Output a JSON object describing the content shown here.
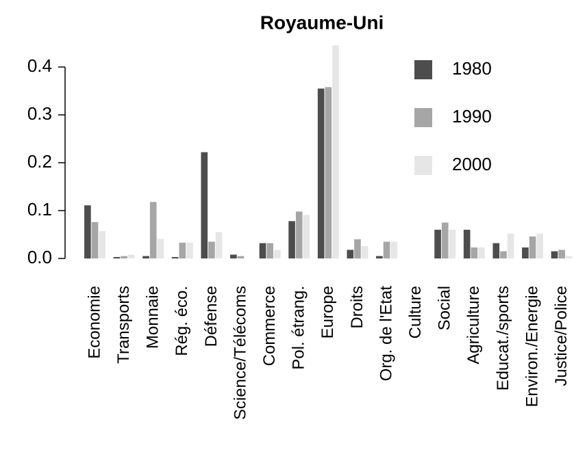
{
  "chart_data": {
    "type": "bar",
    "title": "Royaume-Uni",
    "categories": [
      "Economie",
      "Transports",
      "Monnaie",
      "Rég. éco.",
      "Défense",
      "Science/Télécoms",
      "Commerce",
      "Pol. étrang.",
      "Europe",
      "Droits",
      "Org. de l'Etat",
      "Culture",
      "Social",
      "Agriculture",
      "Educat./sports",
      "Environ./Energie",
      "Justice/Police"
    ],
    "series": [
      {
        "name": "1980",
        "color": "#4d4d4d",
        "values": [
          0.111,
          0.003,
          0.005,
          0.003,
          0.222,
          0.008,
          0.032,
          0.078,
          0.355,
          0.018,
          0.005,
          0,
          0.06,
          0.06,
          0.032,
          0.023,
          0.015
        ]
      },
      {
        "name": "1990",
        "color": "#a6a6a6",
        "values": [
          0.076,
          0.005,
          0.118,
          0.033,
          0.035,
          0.005,
          0.032,
          0.098,
          0.358,
          0.04,
          0.035,
          0,
          0.075,
          0.023,
          0.015,
          0.046,
          0.018
        ]
      },
      {
        "name": "2000",
        "color": "#e6e6e6",
        "values": [
          0.057,
          0.008,
          0.041,
          0.033,
          0.055,
          0,
          0.018,
          0.091,
          0.445,
          0.026,
          0.035,
          0,
          0.06,
          0.023,
          0.052,
          0.052,
          0.005
        ]
      }
    ],
    "ylim": [
      0,
      0.445
    ],
    "yticks": [
      {
        "value": 0,
        "label": "0.0"
      },
      0.1,
      0.2,
      0.3,
      0.4
    ]
  }
}
